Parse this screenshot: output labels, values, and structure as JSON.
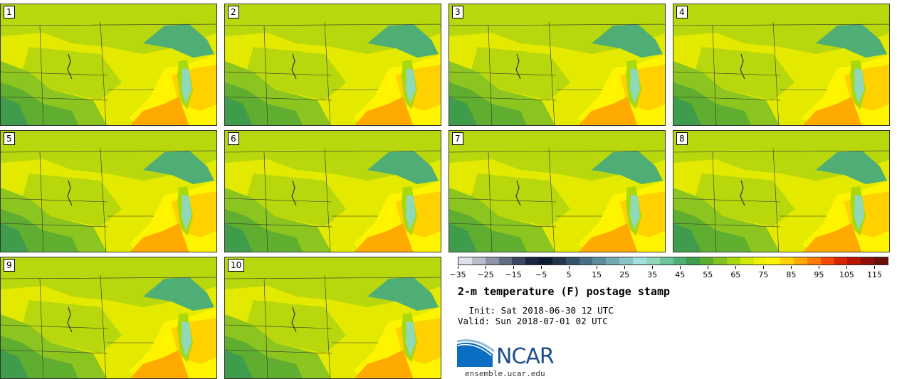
{
  "panels": [
    {
      "label": "1"
    },
    {
      "label": "2"
    },
    {
      "label": "3"
    },
    {
      "label": "4"
    },
    {
      "label": "5"
    },
    {
      "label": "6"
    },
    {
      "label": "7"
    },
    {
      "label": "8"
    },
    {
      "label": "9"
    },
    {
      "label": "10"
    }
  ],
  "colorbar": {
    "colors": [
      "#dfe1ea",
      "#b8bdc9",
      "#8d94a6",
      "#626c82",
      "#3d4660",
      "#1c2540",
      "#0e1a30",
      "#24344c",
      "#34536a",
      "#476f84",
      "#5e8b9a",
      "#74a8b2",
      "#8ac4c8",
      "#9fe0dd",
      "#8fd9b9",
      "#6cc59a",
      "#4fae76",
      "#3e9c4c",
      "#5cae30",
      "#80c421",
      "#a8d80e",
      "#d0ea04",
      "#eef200",
      "#fff400",
      "#ffd100",
      "#ffaa00",
      "#ff7b00",
      "#f44900",
      "#d92400",
      "#b81400",
      "#8e1008",
      "#6a0f08"
    ],
    "tick_labels": [
      "-35",
      "-25",
      "-15",
      "-5",
      "5",
      "15",
      "25",
      "35",
      "45",
      "55",
      "65",
      "75",
      "85",
      "95",
      "105",
      "115"
    ]
  },
  "title": "2-m temperature (F) postage stamp",
  "init": " Init: Sat 2018-06-30 12 UTC",
  "valid": "Valid: Sun 2018-07-01 02 UTC",
  "logo": {
    "text": "NCAR",
    "url": "ensemble.ucar.edu"
  }
}
